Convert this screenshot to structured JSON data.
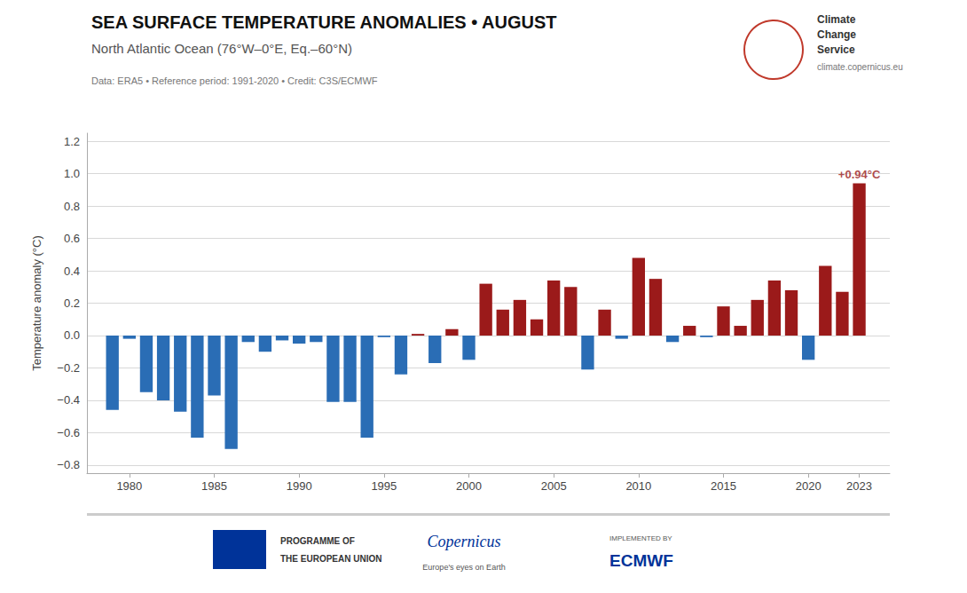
{
  "chart_data": {
    "type": "bar",
    "title": "SEA SURFACE TEMPERATURE ANOMALIES • AUGUST",
    "subtitle": "North Atlantic Ocean (76°W–0°E, Eq.–60°N)",
    "note": "Data: ERA5 • Reference period: 1991-2020 • Credit: C3S/ECMWF",
    "ylabel": "Temperature anomaly (°C)",
    "x": [
      1979,
      1980,
      1981,
      1982,
      1983,
      1984,
      1985,
      1986,
      1987,
      1988,
      1989,
      1990,
      1991,
      1992,
      1993,
      1994,
      1995,
      1996,
      1997,
      1998,
      1999,
      2000,
      2001,
      2002,
      2003,
      2004,
      2005,
      2006,
      2007,
      2008,
      2009,
      2010,
      2011,
      2012,
      2013,
      2014,
      2015,
      2016,
      2017,
      2018,
      2019,
      2020,
      2021,
      2022,
      2023
    ],
    "values": [
      -0.46,
      -0.02,
      -0.35,
      -0.4,
      -0.47,
      -0.63,
      -0.37,
      -0.7,
      -0.04,
      -0.1,
      -0.03,
      -0.05,
      -0.04,
      -0.41,
      -0.41,
      -0.63,
      -0.01,
      -0.24,
      0.01,
      -0.17,
      0.04,
      -0.15,
      0.32,
      0.16,
      0.22,
      0.1,
      0.34,
      0.3,
      -0.21,
      0.16,
      -0.02,
      0.48,
      0.35,
      -0.04,
      0.06,
      -0.01,
      0.18,
      0.06,
      0.22,
      0.34,
      0.28,
      -0.15,
      0.43,
      0.27,
      0.94
    ],
    "colors": [
      "#2a6db5",
      "#2a6db5",
      "#2a6db5",
      "#2a6db5",
      "#2a6db5",
      "#2a6db5",
      "#2a6db5",
      "#2a6db5",
      "#2a6db5",
      "#2a6db5",
      "#2a6db5",
      "#2a6db5",
      "#2a6db5",
      "#2a6db5",
      "#2a6db5",
      "#2a6db5",
      "#2a6db5",
      "#2a6db5",
      "#9b1a1a",
      "#2a6db5",
      "#9b1a1a",
      "#2a6db5",
      "#9b1a1a",
      "#9b1a1a",
      "#9b1a1a",
      "#9b1a1a",
      "#9b1a1a",
      "#9b1a1a",
      "#2a6db5",
      "#9b1a1a",
      "#2a6db5",
      "#9b1a1a",
      "#9b1a1a",
      "#2a6db5",
      "#9b1a1a",
      "#2a6db5",
      "#9b1a1a",
      "#9b1a1a",
      "#9b1a1a",
      "#9b1a1a",
      "#9b1a1a",
      "#2a6db5",
      "#9b1a1a",
      "#9b1a1a",
      "#9b1a1a"
    ],
    "xlim": [
      1977.5,
      2024.8
    ],
    "xticks": [
      1980,
      1985,
      1990,
      1995,
      2000,
      2005,
      2010,
      2015,
      2020,
      2023
    ],
    "ylim": [
      -0.85,
      1.25
    ],
    "yticks": [
      {
        "value": -0.8,
        "label": "−0.8"
      },
      {
        "value": -0.6,
        "label": "−0.6"
      },
      {
        "value": -0.4,
        "label": "−0.4"
      },
      {
        "value": -0.2,
        "label": "−0.2"
      },
      {
        "value": 0.0,
        "label": "0.0"
      },
      0.2,
      0.4,
      0.6,
      0.8,
      {
        "value": 1.0,
        "label": "1.0"
      },
      1.2
    ],
    "grid": true,
    "annotations": [
      {
        "text": "+0.94°C",
        "x": 2023,
        "y": 0.94,
        "color": "#9b1a1a"
      },
      {
        "text": "Climate"
      },
      {
        "text": "Change"
      },
      {
        "text": "Service"
      },
      {
        "text": "climate.copernicus.eu"
      },
      {
        "text": "PROGRAMME OF"
      },
      {
        "text": "THE EUROPEAN UNION"
      },
      {
        "text": "Copernicus"
      },
      {
        "text": "Europe's eyes on Earth"
      },
      {
        "text": "IMPLEMENTED BY"
      },
      {
        "text": "ECMWF"
      }
    ]
  }
}
